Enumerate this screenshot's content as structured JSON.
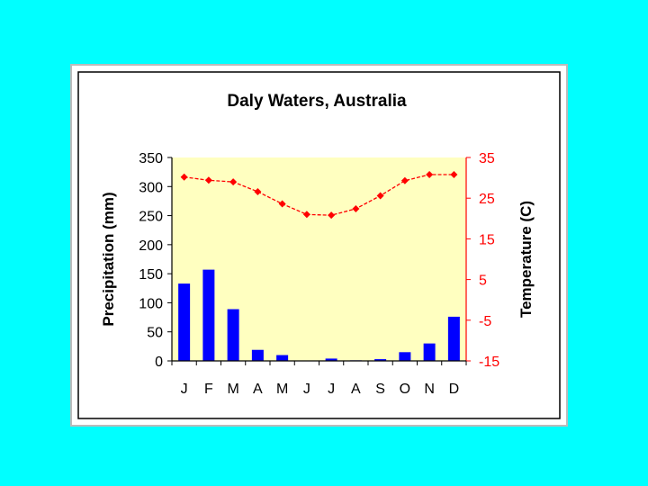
{
  "colors": {
    "page_background": "#00ffff",
    "plot_background": "#ffffc0",
    "bar": "#0000ff",
    "line": "#ff0000",
    "left_axis": "#000000",
    "right_axis": "#ff0000"
  },
  "chart_data": {
    "type": "bar+line",
    "title": "Daly Waters, Australia",
    "categories": [
      "J",
      "F",
      "M",
      "A",
      "M",
      "J",
      "J",
      "A",
      "S",
      "O",
      "N",
      "D"
    ],
    "precipitation": {
      "ylabel": "Precipitation (mm)",
      "ylim": [
        0,
        350
      ],
      "ticks": [
        "0",
        "50",
        "100",
        "150",
        "200",
        "250",
        "300",
        "350"
      ],
      "values": [
        133,
        157,
        89,
        19,
        10,
        0,
        4,
        1,
        3,
        15,
        30,
        76
      ]
    },
    "temperature": {
      "ylabel": "Temperature (C)",
      "ylim": [
        -15,
        35
      ],
      "ticks": [
        "-15",
        "-5",
        "5",
        "15",
        "25",
        "35"
      ],
      "values": [
        30.2,
        29.4,
        29.0,
        26.6,
        23.6,
        21.0,
        20.8,
        22.4,
        25.6,
        29.3,
        30.8,
        30.8
      ]
    },
    "grid": false,
    "legend": "none"
  }
}
